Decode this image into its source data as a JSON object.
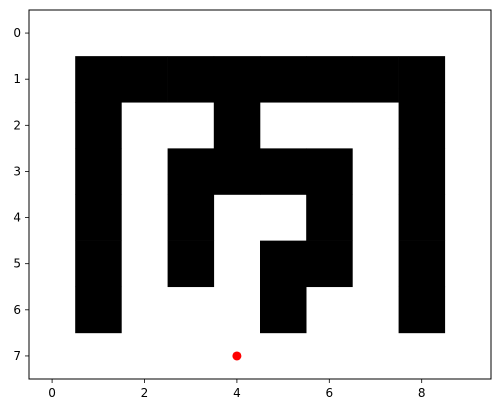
{
  "chart_data": {
    "type": "heatmap",
    "title": "",
    "xlabel": "",
    "ylabel": "",
    "xlim": [
      -0.5,
      9.5
    ],
    "ylim": [
      7.5,
      -0.5
    ],
    "x_ticks": [
      0,
      2,
      4,
      6,
      8
    ],
    "y_ticks": [
      0,
      1,
      2,
      3,
      4,
      5,
      6,
      7
    ],
    "grid": false,
    "colors": {
      "wall": "#000000",
      "open": "#ffffff",
      "marker": "#ff0000"
    },
    "grid_values": [
      [
        0,
        0,
        0,
        0,
        0,
        0,
        0,
        0,
        0,
        0
      ],
      [
        0,
        1,
        1,
        1,
        1,
        1,
        1,
        1,
        1,
        0
      ],
      [
        0,
        1,
        0,
        0,
        1,
        0,
        0,
        0,
        1,
        0
      ],
      [
        0,
        1,
        0,
        1,
        1,
        1,
        1,
        0,
        1,
        0
      ],
      [
        0,
        1,
        0,
        1,
        0,
        0,
        1,
        0,
        1,
        0
      ],
      [
        0,
        1,
        0,
        1,
        0,
        1,
        1,
        0,
        1,
        0
      ],
      [
        0,
        1,
        0,
        0,
        0,
        1,
        0,
        0,
        1,
        0
      ],
      [
        0,
        0,
        0,
        0,
        0,
        0,
        0,
        0,
        0,
        0
      ]
    ],
    "marker": {
      "x": 4,
      "y": 7
    }
  }
}
